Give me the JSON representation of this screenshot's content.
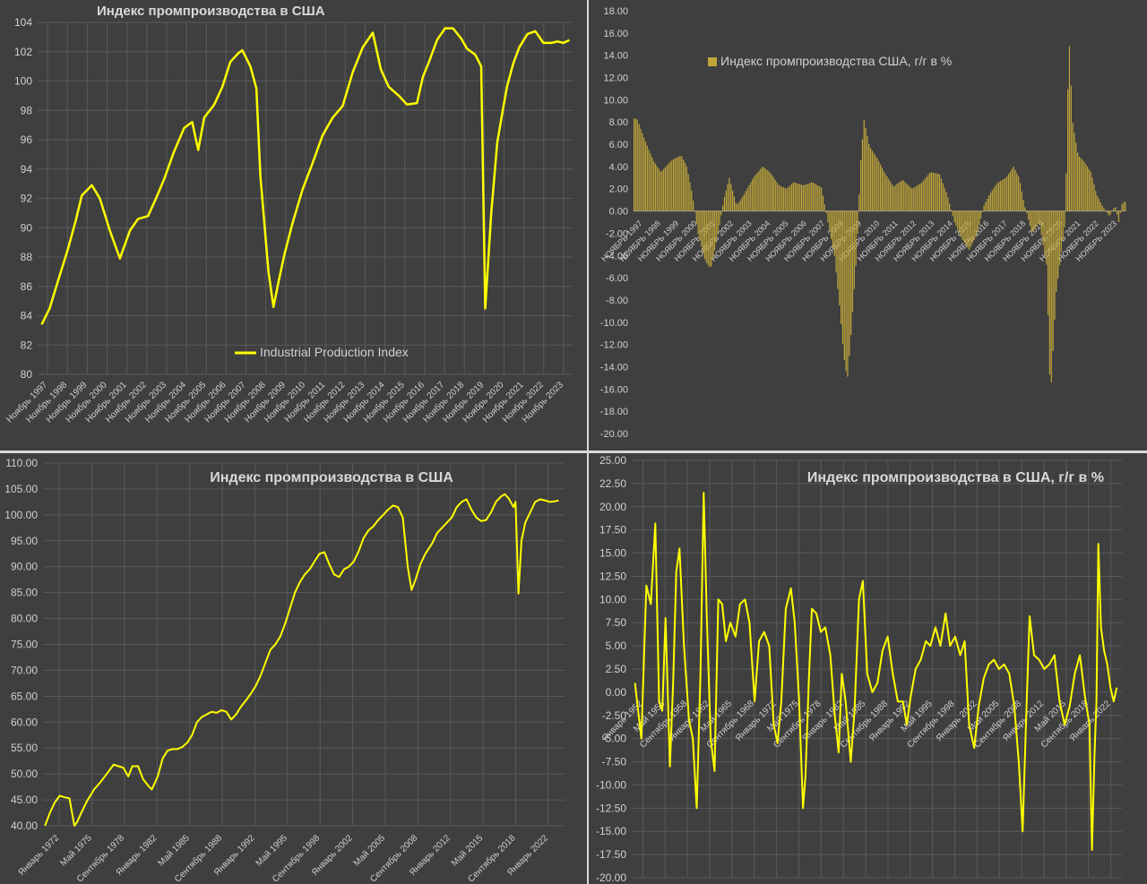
{
  "colors": {
    "background": "#3f3f3f",
    "grid": "#5a5a5a",
    "axis_text": "#d0d0d0",
    "line": "#ffff00",
    "bar": "#bfa53a",
    "title": "#d9d9d9"
  },
  "chart_data": [
    {
      "type": "line",
      "title": "Индекс промпроизводства в США",
      "legend": [
        "Industrial Production Index"
      ],
      "legend_position": "bottom-center",
      "grid": true,
      "ylim": [
        80,
        104
      ],
      "yticks": [
        "80",
        "82",
        "84",
        "86",
        "88",
        "90",
        "92",
        "94",
        "96",
        "98",
        "100",
        "102",
        "104"
      ],
      "xlabels": [
        "Ноябрь 1997",
        "Ноябрь 1998",
        "Ноябрь 1999",
        "Ноябрь 2000",
        "Ноябрь 2001",
        "Ноябрь 2002",
        "Ноябрь 2003",
        "Ноябрь 2004",
        "Ноябрь 2005",
        "Ноябрь 2006",
        "Ноябрь 2007",
        "Ноябрь 2008",
        "Ноябрь 2009",
        "Ноябрь 2010",
        "Ноябрь 2011",
        "Ноябрь 2012",
        "Ноябрь 2013",
        "Ноябрь 2014",
        "Ноябрь 2015",
        "Ноябрь 2016",
        "Ноябрь 2017",
        "Ноябрь 2018",
        "Ноябрь 2019",
        "Ноябрь 2020",
        "Ноябрь 2021",
        "Ноябрь 2022",
        "Ноябрь 2023"
      ],
      "series": [
        {
          "name": "Industrial Production Index",
          "x": [
            1997.9,
            1998.3,
            1998.7,
            1999.2,
            1999.6,
            1999.9,
            2000.4,
            2000.8,
            2001.3,
            2001.8,
            2002.3,
            2002.7,
            2003.2,
            2003.6,
            2004.0,
            2004.5,
            2005.0,
            2005.4,
            2005.7,
            2006.0,
            2006.5,
            2006.9,
            2007.3,
            2007.7,
            2007.9,
            2008.3,
            2008.6,
            2008.8,
            2009.2,
            2009.45,
            2009.7,
            2010.0,
            2010.4,
            2010.9,
            2011.4,
            2011.9,
            2012.4,
            2012.9,
            2013.4,
            2013.9,
            2014.4,
            2014.8,
            2015.2,
            2015.7,
            2016.1,
            2016.6,
            2016.9,
            2017.2,
            2017.6,
            2018.0,
            2018.4,
            2018.8,
            2019.1,
            2019.5,
            2019.8,
            2020.0,
            2020.3,
            2020.6,
            2020.9,
            2021.1,
            2021.4,
            2021.7,
            2022.1,
            2022.5,
            2022.9,
            2023.3,
            2023.6,
            2023.9,
            2024.2
          ],
          "values": [
            83.4,
            84.5,
            86.3,
            88.5,
            90.5,
            92.2,
            92.9,
            92.0,
            89.8,
            87.9,
            89.8,
            90.6,
            90.8,
            92.0,
            93.3,
            95.2,
            96.8,
            97.2,
            95.3,
            97.5,
            98.4,
            99.6,
            101.3,
            101.9,
            102.1,
            101.0,
            99.5,
            93.5,
            87.0,
            84.6,
            86.3,
            88.2,
            90.3,
            92.6,
            94.4,
            96.3,
            97.5,
            98.3,
            100.6,
            102.3,
            103.3,
            100.8,
            99.6,
            99.0,
            98.4,
            98.5,
            100.3,
            101.3,
            102.8,
            103.6,
            103.6,
            102.9,
            102.2,
            101.8,
            101.0,
            84.5,
            91.0,
            95.8,
            98.2,
            99.7,
            101.2,
            102.3,
            103.2,
            103.4,
            102.6,
            102.6,
            102.7,
            102.6,
            102.8
          ]
        }
      ]
    },
    {
      "type": "bar",
      "title": "",
      "legend": [
        "Индекс промпроизводства США, г/г в %"
      ],
      "legend_position": "top-left",
      "grid": false,
      "ylim": [
        -20,
        18
      ],
      "yticks": [
        "-20.00",
        "-18.00",
        "-16.00",
        "-14.00",
        "-12.00",
        "-10.00",
        "-8.00",
        "-6.00",
        "-4.00",
        "-2.00",
        "0.00",
        "2.00",
        "4.00",
        "6.00",
        "8.00",
        "10.00",
        "12.00",
        "14.00",
        "16.00",
        "18.00"
      ],
      "xlabels": [
        "НОЯБРЬ 1997",
        "НОЯБРЬ 1998",
        "НОЯБРЬ 1999",
        "НОЯБРЬ 2000",
        "НОЯБРЬ 2001",
        "НОЯБРЬ 2002",
        "НОЯБРЬ 2003",
        "НОЯБРЬ 2004",
        "НОЯБРЬ 2005",
        "НОЯБРЬ 2006",
        "НОЯБРЬ 2007",
        "НОЯБРЬ 2008",
        "НОЯБРЬ 2009",
        "НОЯБРЬ 2010",
        "НОЯБРЬ 2011",
        "НОЯБРЬ 2012",
        "НОЯБРЬ 2013",
        "НОЯБРЬ 2014",
        "НОЯБРЬ 2015",
        "НОЯБРЬ 2016",
        "НОЯБРЬ 2017",
        "НОЯБРЬ 2018",
        "НОЯБРЬ 2019",
        "НОЯБРЬ 2020",
        "НОЯБРЬ 2021",
        "НОЯБРЬ 2022",
        "НОЯБРЬ 2023"
      ],
      "series": [
        {
          "name": "Индекс промпроизводства США, г/г в %",
          "x": [
            1997.9,
            1998.3,
            1998.8,
            1999.2,
            1999.8,
            2000.3,
            2000.6,
            2000.9,
            2001.2,
            2001.6,
            2001.9,
            2002.3,
            2002.6,
            2002.9,
            2003.3,
            2003.7,
            2004.2,
            2004.7,
            2005.1,
            2005.6,
            2006.0,
            2006.4,
            2006.9,
            2007.4,
            2007.9,
            2008.3,
            2008.6,
            2008.9,
            2009.1,
            2009.3,
            2009.5,
            2009.8,
            2010.0,
            2010.2,
            2010.5,
            2010.9,
            2011.3,
            2011.8,
            2012.3,
            2012.8,
            2013.3,
            2013.8,
            2014.3,
            2014.7,
            2015.1,
            2015.5,
            2015.9,
            2016.3,
            2016.7,
            2017.0,
            2017.4,
            2017.9,
            2018.3,
            2018.6,
            2018.9,
            2019.3,
            2019.7,
            2020.1,
            2020.3,
            2020.6,
            2020.9,
            2021.1,
            2021.3,
            2021.5,
            2021.8,
            2022.1,
            2022.5,
            2022.8,
            2023.1,
            2023.5,
            2023.8,
            2024.0,
            2024.2
          ],
          "values": [
            8.3,
            6.5,
            4.5,
            3.5,
            4.6,
            5.0,
            4.0,
            1.5,
            -2.0,
            -4.5,
            -5.2,
            -2.0,
            1.0,
            3.0,
            0.5,
            1.5,
            3.0,
            4.0,
            3.5,
            2.3,
            2.0,
            2.6,
            2.3,
            2.6,
            2.1,
            -1.5,
            -4.0,
            -9.0,
            -13.0,
            -15.2,
            -11.0,
            -4.0,
            4.0,
            8.2,
            5.8,
            4.8,
            3.5,
            2.2,
            2.8,
            2.0,
            2.5,
            3.5,
            3.3,
            1.5,
            -1.0,
            -2.5,
            -3.5,
            -2.2,
            0.5,
            1.5,
            2.5,
            3.0,
            4.0,
            3.0,
            0.5,
            -2.0,
            -1.0,
            -5.0,
            -17.0,
            -7.5,
            -3.5,
            -1.0,
            16.0,
            8.0,
            5.0,
            4.5,
            3.5,
            1.5,
            0.5,
            -0.5,
            0.5,
            -1.0,
            0.8
          ]
        }
      ]
    },
    {
      "type": "line",
      "title": "Индекс промпроизводства в США",
      "grid": true,
      "ylim": [
        40,
        110
      ],
      "yticks": [
        "40.00",
        "45.00",
        "50.00",
        "55.00",
        "60.00",
        "65.00",
        "70.00",
        "75.00",
        "80.00",
        "85.00",
        "90.00",
        "95.00",
        "100.00",
        "105.00",
        "110.00"
      ],
      "xlabels": [
        "Январь 1972",
        "Май 1975",
        "Сентябрь 1978",
        "Январь 1982",
        "Май 1985",
        "Сентябрь 1988",
        "Январь 1992",
        "Май 1995",
        "Сентябрь 1998",
        "Январь 2002",
        "Май 2005",
        "Сентябрь 2008",
        "Январь 2012",
        "Май 2015",
        "Сентябрь 2018",
        "Январь 2022"
      ],
      "series": [
        {
          "name": "",
          "x": [
            1972.0,
            1972.5,
            1973.0,
            1973.5,
            1974.0,
            1974.5,
            1975.0,
            1975.3,
            1975.7,
            1976.3,
            1977.0,
            1977.7,
            1978.3,
            1979.0,
            1979.5,
            1980.0,
            1980.5,
            1980.9,
            1981.5,
            1982.0,
            1982.5,
            1982.9,
            1983.5,
            1984.0,
            1984.5,
            1985.0,
            1985.5,
            1986.0,
            1986.5,
            1987.0,
            1987.5,
            1988.0,
            1988.5,
            1989.0,
            1989.5,
            1990.0,
            1990.5,
            1991.0,
            1991.5,
            1992.0,
            1992.5,
            1993.0,
            1993.5,
            1994.0,
            1994.5,
            1995.0,
            1995.5,
            1996.0,
            1996.5,
            1997.0,
            1997.5,
            1998.0,
            1998.5,
            1999.0,
            1999.5,
            2000.0,
            2000.5,
            2001.0,
            2001.5,
            2002.0,
            2002.5,
            2003.0,
            2003.5,
            2004.0,
            2004.5,
            2005.0,
            2005.5,
            2006.0,
            2006.5,
            2007.0,
            2007.5,
            2008.0,
            2008.5,
            2009.0,
            2009.4,
            2009.8,
            2010.3,
            2010.8,
            2011.5,
            2012.0,
            2012.5,
            2013.0,
            2013.5,
            2014.0,
            2014.5,
            2015.0,
            2015.5,
            2016.0,
            2016.5,
            2017.0,
            2017.5,
            2018.0,
            2018.5,
            2018.9,
            2019.3,
            2019.8,
            2020.0,
            2020.3,
            2020.6,
            2021.0,
            2021.5,
            2022.0,
            2022.5,
            2023.0,
            2023.5,
            2024.0,
            2024.4
          ],
          "values": [
            40.0,
            42.5,
            44.5,
            45.8,
            45.5,
            45.3,
            40.0,
            40.8,
            42.5,
            44.8,
            47.0,
            48.5,
            50.0,
            51.8,
            51.5,
            51.2,
            49.5,
            51.5,
            51.5,
            49.0,
            47.8,
            47.0,
            49.5,
            53.0,
            54.5,
            54.8,
            54.8,
            55.2,
            56.0,
            57.5,
            60.0,
            61.0,
            61.5,
            62.0,
            61.8,
            62.3,
            62.0,
            60.5,
            61.5,
            63.0,
            64.2,
            65.5,
            67.0,
            69.0,
            71.5,
            74.0,
            75.0,
            76.5,
            79.0,
            82.0,
            85.0,
            87.0,
            88.5,
            89.5,
            91.0,
            92.5,
            92.8,
            90.5,
            88.5,
            88.0,
            89.5,
            90.0,
            91.0,
            93.0,
            95.5,
            97.0,
            97.8,
            99.0,
            100.0,
            101.0,
            101.8,
            101.5,
            99.5,
            90.0,
            85.5,
            87.5,
            90.5,
            92.5,
            94.5,
            96.5,
            97.5,
            98.5,
            99.5,
            101.5,
            102.5,
            103.0,
            101.0,
            99.5,
            98.8,
            99.0,
            100.5,
            102.5,
            103.5,
            104.0,
            103.2,
            101.5,
            102.5,
            84.8,
            95.0,
            98.5,
            100.5,
            102.5,
            103.0,
            102.8,
            102.5,
            102.6,
            102.8
          ]
        }
      ]
    },
    {
      "type": "line",
      "title": "Индекс промпроизводства в США, г/г в %",
      "grid": true,
      "ylim": [
        -20,
        25
      ],
      "yticks": [
        "-20.00",
        "-17.50",
        "-15.00",
        "-12.50",
        "-10.00",
        "-7.50",
        "-5.00",
        "-2.50",
        "0.00",
        "2.50",
        "5.00",
        "7.50",
        "10.00",
        "12.50",
        "15.00",
        "17.50",
        "20.00",
        "22.50",
        "25.00"
      ],
      "xlabels": [
        "Январь 1952",
        "Май 1955",
        "Сентябрь 1958",
        "Январь 1962",
        "Май 1965",
        "Сентябрь 1968",
        "Январь 1972",
        "Май 1975",
        "Сентябрь 1978",
        "Январь 1982",
        "Май 1985",
        "Сентябрь 1988",
        "Январь 1992",
        "Май 1995",
        "Сентябрь 1998",
        "Январь 2002",
        "Май 2005",
        "Сентябрь 2008",
        "Январь 2012",
        "Май 2015",
        "Сентябрь 2018",
        "Январь 2022"
      ],
      "series": [
        {
          "name": "",
          "x": [
            1948.5,
            1949.5,
            1950.3,
            1951.0,
            1951.7,
            1952.3,
            1952.8,
            1953.3,
            1954.0,
            1954.5,
            1955.0,
            1955.5,
            1956.2,
            1957.0,
            1957.6,
            1958.2,
            1958.8,
            1959.3,
            1959.8,
            1960.4,
            1961.0,
            1961.6,
            1962.2,
            1962.8,
            1963.5,
            1964.3,
            1965.0,
            1965.8,
            1966.5,
            1967.3,
            1968.0,
            1968.8,
            1969.6,
            1970.3,
            1970.9,
            1971.5,
            1972.2,
            1973.0,
            1973.6,
            1974.3,
            1974.9,
            1975.3,
            1975.8,
            1976.3,
            1977.0,
            1977.7,
            1978.4,
            1979.2,
            1979.9,
            1980.5,
            1981.0,
            1981.6,
            1982.4,
            1983.0,
            1983.7,
            1984.3,
            1985.0,
            1985.8,
            1986.6,
            1987.4,
            1988.2,
            1989.0,
            1989.8,
            1990.6,
            1991.2,
            1991.8,
            1992.6,
            1993.4,
            1994.2,
            1994.9,
            1995.7,
            1996.5,
            1997.3,
            1998.0,
            1998.8,
            1999.6,
            2000.3,
            2001.0,
            2001.8,
            2002.5,
            2003.3,
            2004.1,
            2004.9,
            2005.7,
            2006.5,
            2007.3,
            2008.1,
            2008.8,
            2009.4,
            2010.0,
            2010.5,
            2011.2,
            2012.0,
            2012.8,
            2013.6,
            2014.4,
            2015.2,
            2016.0,
            2016.8,
            2017.6,
            2018.4,
            2019.2,
            2019.9,
            2020.3,
            2020.7,
            2021.0,
            2021.3,
            2021.7,
            2022.2,
            2022.7,
            2023.2,
            2023.7,
            2024.2
          ],
          "values": [
            1.0,
            -5.0,
            11.5,
            9.5,
            18.2,
            -1.0,
            -2.0,
            8.0,
            -8.0,
            1.0,
            13.0,
            15.5,
            5.0,
            -3.0,
            -5.0,
            -12.5,
            2.0,
            21.5,
            8.0,
            -5.0,
            -8.5,
            10.0,
            9.5,
            5.5,
            7.5,
            6.0,
            9.5,
            10.0,
            7.5,
            -1.0,
            5.5,
            6.5,
            5.0,
            -3.5,
            -5.5,
            -1.0,
            9.0,
            11.2,
            7.5,
            -1.0,
            -12.5,
            -9.0,
            1.0,
            9.0,
            8.5,
            6.5,
            7.0,
            4.0,
            -2.5,
            -6.5,
            2.0,
            -1.0,
            -7.5,
            -2.0,
            10.0,
            12.0,
            2.0,
            0.0,
            1.0,
            4.5,
            6.0,
            2.0,
            -1.0,
            -1.0,
            -3.5,
            -0.5,
            2.5,
            3.5,
            5.5,
            5.0,
            7.0,
            5.0,
            8.5,
            5.0,
            6.0,
            4.0,
            5.5,
            -3.5,
            -6.0,
            -1.5,
            1.5,
            3.0,
            3.5,
            2.5,
            3.0,
            2.0,
            -1.5,
            -7.5,
            -15.0,
            -2.0,
            8.2,
            4.0,
            3.5,
            2.5,
            3.0,
            4.0,
            -1.0,
            -3.5,
            -1.5,
            2.0,
            4.0,
            -0.5,
            -3.5,
            -17.0,
            -6.5,
            -1.0,
            16.0,
            7.0,
            4.5,
            3.0,
            0.5,
            -1.0,
            0.5
          ]
        }
      ]
    }
  ]
}
